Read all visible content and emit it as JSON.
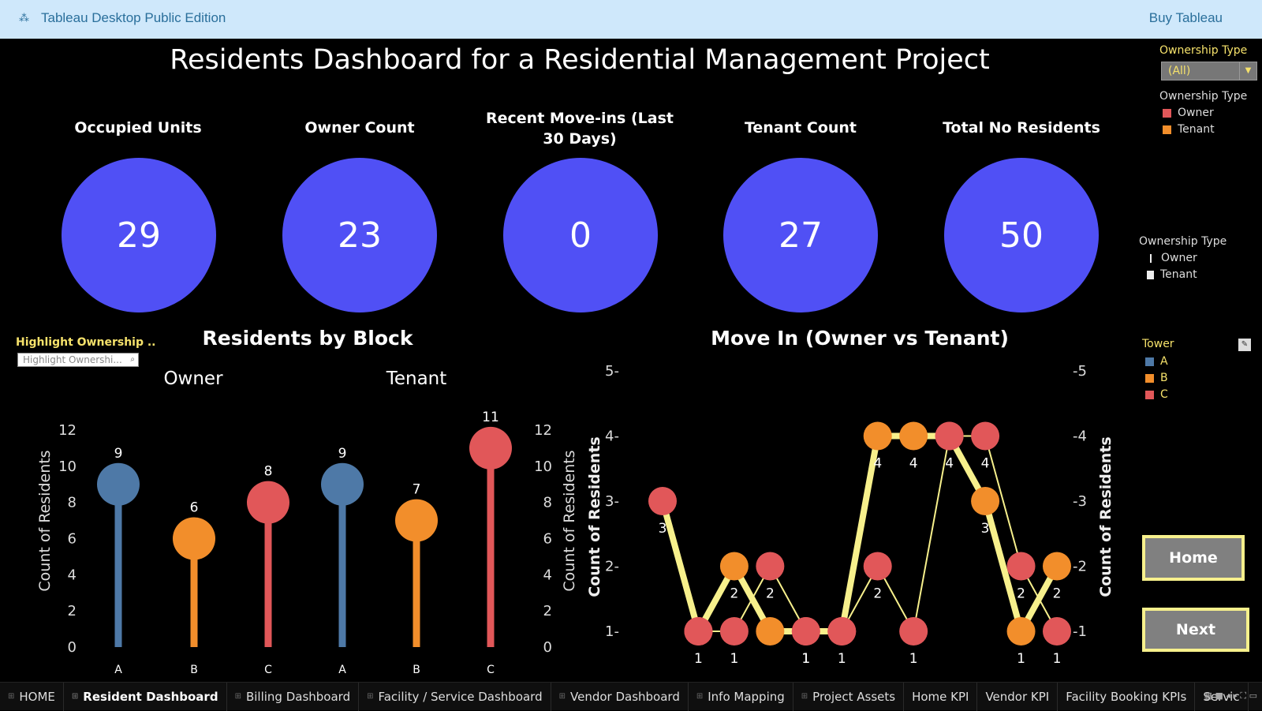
{
  "app": {
    "title": "Tableau Desktop Public Edition",
    "buy_label": "Buy Tableau",
    "logo_icon": "tableau-logo-icon"
  },
  "dashboard": {
    "title": "Residents Dashboard for a Residential Management Project"
  },
  "kpis": [
    {
      "label": "Occupied Units",
      "value": "29"
    },
    {
      "label": "Owner Count",
      "value": "23"
    },
    {
      "label": "Recent Move-ins (Last 30 Days)",
      "value": "0"
    },
    {
      "label": "Tenant Count",
      "value": "27"
    },
    {
      "label": "Total No Residents",
      "value": "50"
    }
  ],
  "filters": {
    "ownership_filter_title": "Ownership Type",
    "ownership_filter_value": "(All)",
    "legend1_title": "Ownership Type",
    "legend1_items": [
      {
        "label": "Owner",
        "color": "#e15759"
      },
      {
        "label": "Tenant",
        "color": "#f28e2b"
      }
    ],
    "legend2_title": "Ownership Type",
    "legend2_items": [
      {
        "label": "Owner"
      },
      {
        "label": "Tenant"
      }
    ],
    "tower_title": "Tower",
    "tower_items": [
      {
        "label": "A",
        "color": "#4e79a7"
      },
      {
        "label": "B",
        "color": "#f28e2b"
      },
      {
        "label": "C",
        "color": "#e15759"
      }
    ],
    "highlight_title": "Highlight Ownership ..",
    "highlight_placeholder": "Highlight Ownershi..."
  },
  "buttons": {
    "home": "Home",
    "next": "Next"
  },
  "tabs": [
    {
      "label": "HOME",
      "active": false
    },
    {
      "label": "Resident Dashboard",
      "active": true
    },
    {
      "label": "Billing Dashboard",
      "active": false
    },
    {
      "label": "Facility / Service Dashboard",
      "active": false
    },
    {
      "label": "Vendor Dashboard",
      "active": false
    },
    {
      "label": "Info Mapping",
      "active": false
    },
    {
      "label": "Project Assets",
      "active": false
    },
    {
      "label": "Home KPI",
      "active": false
    },
    {
      "label": "Vendor KPI",
      "active": false
    },
    {
      "label": "Facility Booking KPIs",
      "active": false
    },
    {
      "label": "Servic",
      "active": false
    }
  ],
  "colors": {
    "kpi_circle": "#5050f5",
    "tower_a": "#4e79a7",
    "tower_b": "#f28e2b",
    "tower_c": "#e15759",
    "line_owner": "#f7f08c",
    "line_tenant": "#f7f08c"
  },
  "chart_data": [
    {
      "type": "lollipop",
      "title": "Residents by Block",
      "panels": [
        {
          "name": "Owner",
          "categories": [
            "A",
            "B",
            "C"
          ],
          "values": [
            9,
            6,
            8
          ]
        },
        {
          "name": "Tenant",
          "categories": [
            "A",
            "B",
            "C"
          ],
          "values": [
            9,
            7,
            11
          ]
        }
      ],
      "ylabel": "Count of Residents",
      "owner_ticks": [
        0,
        2,
        4,
        6,
        8,
        10,
        12
      ],
      "tenant_ticks": [
        0,
        2,
        4,
        6,
        8,
        10,
        12
      ],
      "ylim": [
        0,
        12
      ]
    },
    {
      "type": "line",
      "title": "Move In (Owner vs Tenant)",
      "ylabel": "Count of Residents",
      "yticks": [
        1,
        2,
        3,
        4,
        5
      ],
      "ylim": [
        1,
        5
      ],
      "series": [
        {
          "name": "Owner",
          "values": [
            3,
            1,
            2,
            1,
            1,
            1,
            4,
            4,
            4,
            3,
            1,
            2
          ],
          "colors": [
            "C",
            "C",
            "B",
            "B",
            "C",
            "C",
            "B",
            "B",
            "C",
            "B",
            "B",
            "B"
          ],
          "labels": [
            "3",
            "1",
            "2",
            "",
            "1",
            "1",
            "4",
            "4",
            "4",
            "3",
            "1",
            "2"
          ]
        },
        {
          "name": "Tenant",
          "values": [
            null,
            1,
            1,
            2,
            1,
            1,
            2,
            1,
            4,
            4,
            2,
            1
          ],
          "colors": [
            "",
            "C",
            "C",
            "C",
            "C",
            "C",
            "C",
            "C",
            "C",
            "C",
            "C",
            "C"
          ],
          "labels": [
            "",
            "",
            "1",
            "2",
            "1",
            "",
            "2",
            "1",
            "",
            "4",
            "2",
            "1"
          ]
        }
      ],
      "x_count": 12
    }
  ]
}
